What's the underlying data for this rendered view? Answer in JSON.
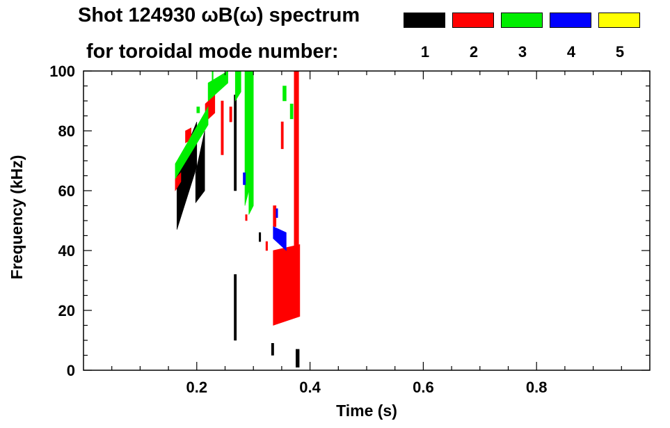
{
  "chart_data": {
    "type": "heatmap",
    "title": "Shot 124930 ωB(ω) spectrum",
    "subtitle": "for toroidal mode number:",
    "xlabel": "Time (s)",
    "ylabel": "Frequency (kHz)",
    "xlim": [
      0.0,
      1.0
    ],
    "ylim": [
      0,
      100
    ],
    "x_ticks": [
      0.2,
      0.4,
      0.6,
      0.8
    ],
    "y_ticks": [
      0,
      20,
      40,
      60,
      80,
      100
    ],
    "grid": false,
    "legend": [
      {
        "label": "1",
        "color": "#000000"
      },
      {
        "label": "2",
        "color": "#ff0000"
      },
      {
        "label": "3",
        "color": "#00ee00"
      },
      {
        "label": "4",
        "color": "#0000ff"
      },
      {
        "label": "5",
        "color": "#ffff00"
      }
    ],
    "series": [
      {
        "mode": "1",
        "patches": [
          {
            "t0": 0.165,
            "t1": 0.2,
            "f_lo_0": 47,
            "f_hi_0": 67,
            "f_lo_1": 68,
            "f_hi_1": 83
          },
          {
            "t0": 0.198,
            "t1": 0.214,
            "f_lo_0": 56,
            "f_hi_0": 66,
            "f_lo_1": 60,
            "f_hi_1": 80
          },
          {
            "t0": 0.266,
            "t1": 0.27,
            "f_lo_0": 10,
            "f_hi_0": 32,
            "f_lo_1": 10,
            "f_hi_1": 32
          },
          {
            "t0": 0.266,
            "t1": 0.27,
            "f_lo_0": 60,
            "f_hi_0": 92,
            "f_lo_1": 60,
            "f_hi_1": 92
          },
          {
            "t0": 0.332,
            "t1": 0.336,
            "f_lo_0": 5,
            "f_hi_0": 9,
            "f_lo_1": 5,
            "f_hi_1": 9
          },
          {
            "t0": 0.375,
            "t1": 0.381,
            "f_lo_0": 1,
            "f_hi_0": 7,
            "f_lo_1": 1,
            "f_hi_1": 7
          },
          {
            "t0": 0.31,
            "t1": 0.313,
            "f_lo_0": 43,
            "f_hi_0": 46,
            "f_lo_1": 43,
            "f_hi_1": 46
          }
        ]
      },
      {
        "mode": "2",
        "patches": [
          {
            "t0": 0.335,
            "t1": 0.382,
            "f_lo_0": 15,
            "f_hi_0": 40,
            "f_lo_1": 18,
            "f_hi_1": 42
          },
          {
            "t0": 0.372,
            "t1": 0.38,
            "f_lo_0": 35,
            "f_hi_0": 100,
            "f_lo_1": 35,
            "f_hi_1": 100
          },
          {
            "t0": 0.215,
            "t1": 0.232,
            "f_lo_0": 83,
            "f_hi_0": 89,
            "f_lo_1": 86,
            "f_hi_1": 92
          },
          {
            "t0": 0.162,
            "t1": 0.172,
            "f_lo_0": 60,
            "f_hi_0": 64,
            "f_lo_1": 63,
            "f_hi_1": 66
          },
          {
            "t0": 0.18,
            "t1": 0.19,
            "f_lo_0": 76,
            "f_hi_0": 80,
            "f_lo_1": 77,
            "f_hi_1": 81
          },
          {
            "t0": 0.243,
            "t1": 0.247,
            "f_lo_0": 72,
            "f_hi_0": 90,
            "f_lo_1": 72,
            "f_hi_1": 90
          },
          {
            "t0": 0.258,
            "t1": 0.262,
            "f_lo_0": 83,
            "f_hi_0": 88,
            "f_lo_1": 83,
            "f_hi_1": 88
          },
          {
            "t0": 0.286,
            "t1": 0.289,
            "f_lo_0": 50,
            "f_hi_0": 52,
            "f_lo_1": 50,
            "f_hi_1": 52
          },
          {
            "t0": 0.322,
            "t1": 0.325,
            "f_lo_0": 40,
            "f_hi_0": 43,
            "f_lo_1": 40,
            "f_hi_1": 43
          },
          {
            "t0": 0.349,
            "t1": 0.353,
            "f_lo_0": 74,
            "f_hi_0": 83,
            "f_lo_1": 74,
            "f_hi_1": 83
          },
          {
            "t0": 0.335,
            "t1": 0.34,
            "f_lo_0": 48,
            "f_hi_0": 55,
            "f_lo_1": 48,
            "f_hi_1": 55
          }
        ]
      },
      {
        "mode": "3",
        "patches": [
          {
            "t0": 0.162,
            "t1": 0.22,
            "f_lo_0": 64,
            "f_hi_0": 69,
            "f_lo_1": 82,
            "f_hi_1": 88
          },
          {
            "t0": 0.22,
            "t1": 0.255,
            "f_lo_0": 90,
            "f_hi_0": 96,
            "f_lo_1": 96,
            "f_hi_1": 100
          },
          {
            "t0": 0.268,
            "t1": 0.278,
            "f_lo_0": 90,
            "f_hi_0": 100,
            "f_lo_1": 93,
            "f_hi_1": 100
          },
          {
            "t0": 0.285,
            "t1": 0.292,
            "f_lo_0": 55,
            "f_hi_0": 100,
            "f_lo_1": 60,
            "f_hi_1": 100
          },
          {
            "t0": 0.292,
            "t1": 0.3,
            "f_lo_0": 52,
            "f_hi_0": 100,
            "f_lo_1": 55,
            "f_hi_1": 100
          },
          {
            "t0": 0.352,
            "t1": 0.358,
            "f_lo_0": 90,
            "f_hi_0": 95,
            "f_lo_1": 90,
            "f_hi_1": 95
          },
          {
            "t0": 0.365,
            "t1": 0.37,
            "f_lo_0": 84,
            "f_hi_0": 89,
            "f_lo_1": 84,
            "f_hi_1": 89
          },
          {
            "t0": 0.227,
            "t1": 0.229,
            "f_lo_0": 92,
            "f_hi_0": 100,
            "f_lo_1": 92,
            "f_hi_1": 100
          },
          {
            "t0": 0.2,
            "t1": 0.205,
            "f_lo_0": 86,
            "f_hi_0": 88,
            "f_lo_1": 86,
            "f_hi_1": 88
          }
        ]
      },
      {
        "mode": "4",
        "patches": [
          {
            "t0": 0.335,
            "t1": 0.358,
            "f_lo_0": 44,
            "f_hi_0": 48,
            "f_lo_1": 40,
            "f_hi_1": 46
          },
          {
            "t0": 0.282,
            "t1": 0.286,
            "f_lo_0": 62,
            "f_hi_0": 66,
            "f_lo_1": 62,
            "f_hi_1": 66
          },
          {
            "t0": 0.34,
            "t1": 0.343,
            "f_lo_0": 51,
            "f_hi_0": 54,
            "f_lo_1": 51,
            "f_hi_1": 54
          }
        ]
      },
      {
        "mode": "5",
        "patches": []
      }
    ]
  }
}
